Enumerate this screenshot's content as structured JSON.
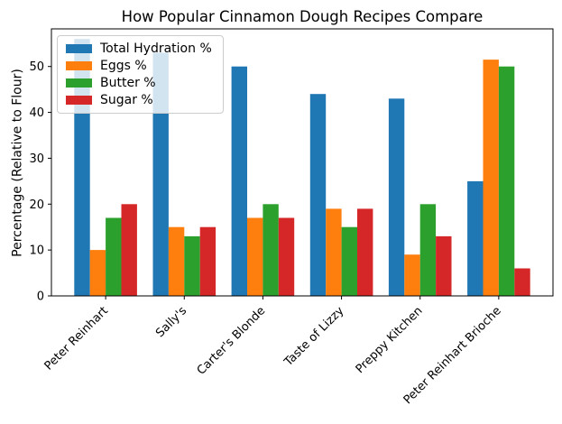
{
  "chart_data": {
    "type": "bar",
    "title": "How Popular Cinnamon Dough Recipes Compare",
    "ylabel": "Percentage (Relative to Flour)",
    "xlabel": "",
    "categories": [
      "Peter Reinhart",
      "Sally's",
      "Carter's Blonde",
      "Taste of Lizzy",
      "Preppy Kitchen",
      "Peter Reinhart Brioche"
    ],
    "series": [
      {
        "name": "Total Hydration %",
        "color": "#1f77b4",
        "values": [
          56,
          53,
          50,
          44,
          43,
          25
        ]
      },
      {
        "name": "Eggs %",
        "color": "#ff7f0e",
        "values": [
          10,
          15,
          17,
          19,
          9,
          51.5
        ]
      },
      {
        "name": "Butter %",
        "color": "#2ca02c",
        "values": [
          17,
          13,
          20,
          15,
          20,
          50
        ]
      },
      {
        "name": "Sugar %",
        "color": "#d62728",
        "values": [
          20,
          15,
          17,
          19,
          13,
          6
        ]
      }
    ],
    "ylim": [
      0,
      58.2
    ],
    "yticks": [
      0,
      10,
      20,
      30,
      40,
      50
    ],
    "xtick_rotation": 45,
    "grid": false,
    "legend_position": "upper left",
    "axis_color": "#000000",
    "background_color": "#ffffff"
  }
}
